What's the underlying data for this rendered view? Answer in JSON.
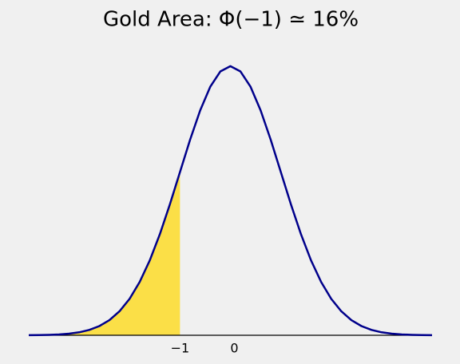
{
  "chart_data": {
    "type": "area_under_curve",
    "title": "Gold Area: Φ(−1) ≃ 16%",
    "x": [
      -4,
      -3.8,
      -3.6,
      -3.4,
      -3.2,
      -3,
      -2.8,
      -2.6,
      -2.4,
      -2.2,
      -2,
      -1.8,
      -1.6,
      -1.4,
      -1.2,
      -1,
      -0.8,
      -0.6,
      -0.4,
      -0.2,
      0,
      0.2,
      0.4,
      0.6,
      0.8,
      1,
      1.2,
      1.4,
      1.6,
      1.8,
      2,
      2.2,
      2.4,
      2.6,
      2.8,
      3,
      3.2,
      3.4,
      3.6,
      3.8,
      4
    ],
    "values": [
      0.0001,
      0.0003,
      0.0006,
      0.0012,
      0.0024,
      0.0044,
      0.0079,
      0.0136,
      0.0224,
      0.0355,
      0.054,
      0.079,
      0.1109,
      0.1497,
      0.1942,
      0.242,
      0.2897,
      0.3332,
      0.3683,
      0.391,
      0.3989,
      0.391,
      0.3683,
      0.3332,
      0.2897,
      0.242,
      0.1942,
      0.1497,
      0.1109,
      0.079,
      0.054,
      0.0355,
      0.0224,
      0.0136,
      0.0079,
      0.0044,
      0.0024,
      0.0012,
      0.0006,
      0.0003,
      0.0001
    ],
    "color": "#00008b",
    "fill_color": "#fbdf47",
    "shade_to": -1,
    "xlim": [
      -4,
      4
    ],
    "ylim": [
      0,
      0.42
    ],
    "xticks": [
      {
        "value": -1,
        "label": "−1"
      },
      0
    ]
  }
}
